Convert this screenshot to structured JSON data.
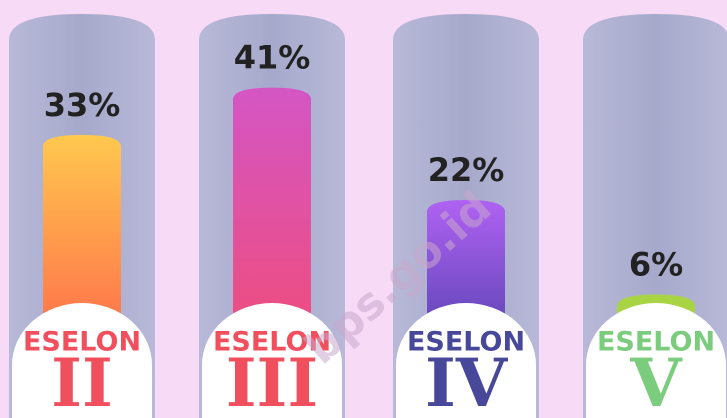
{
  "chart_data": {
    "type": "bar",
    "tier_labels": [
      "ESELON",
      "ESELON",
      "ESELON",
      "ESELON"
    ],
    "categories": [
      "II",
      "III",
      "IV",
      "V"
    ],
    "values": [
      33,
      41,
      22,
      6
    ],
    "value_labels": [
      "33%",
      "41%",
      "22%",
      "6%"
    ],
    "colors": [
      "#ffc84e",
      "#d456c4",
      "#b062f2",
      "#a8d444"
    ],
    "colors_bottom": [
      "#ff624a",
      "#f24c74",
      "#4a3ea8",
      "#a8d444"
    ],
    "label_colors": [
      "#f0505e",
      "#f0505e",
      "#48489a",
      "#7ccc7e"
    ],
    "ylim": [
      0,
      45
    ],
    "watermark": "bps.go.id"
  }
}
